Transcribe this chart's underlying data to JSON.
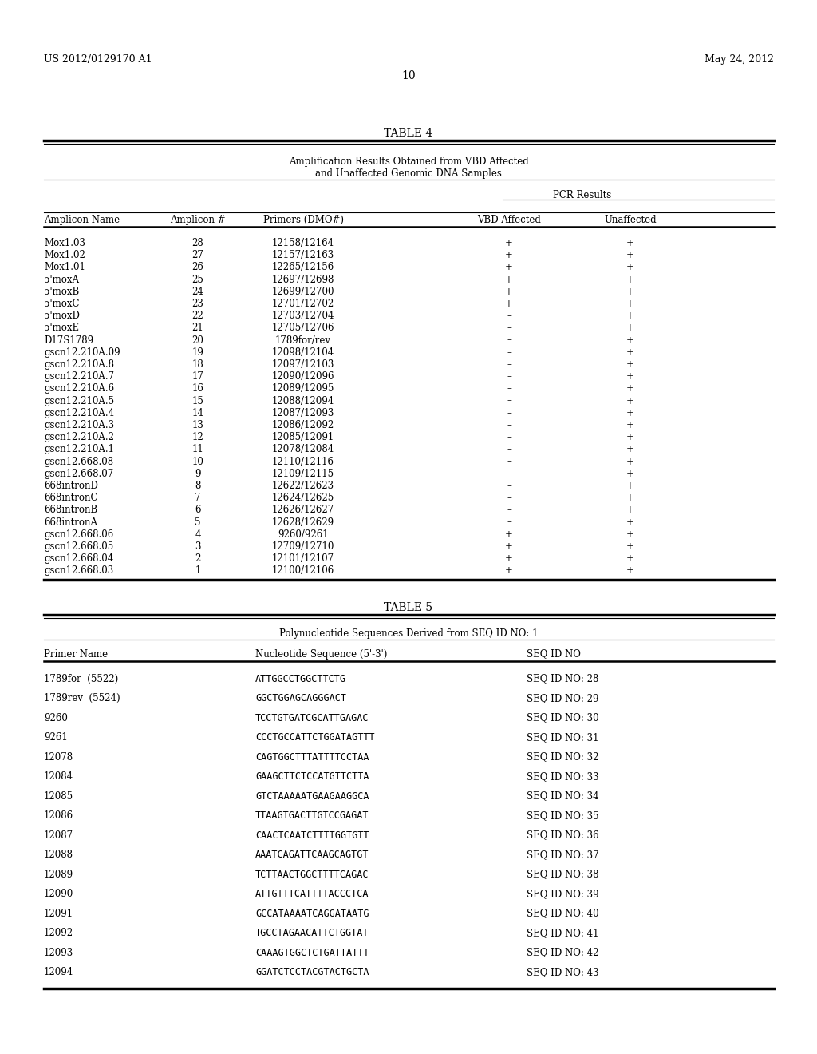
{
  "page_header_left": "US 2012/0129170 A1",
  "page_header_right": "May 24, 2012",
  "page_number": "10",
  "table4": {
    "title": "TABLE 4",
    "subtitle_line1": "Amplification Results Obtained from VBD Affected",
    "subtitle_line2": "and Unaffected Genomic DNA Samples",
    "pcr_label": "PCR Results",
    "col_headers": [
      "Amplicon Name",
      "Amplicon #",
      "Primers (DMO#)",
      "VBD Affected",
      "Unaffected"
    ],
    "rows": [
      [
        "Mox1.03",
        "28",
        "12158/12164",
        "+",
        "+"
      ],
      [
        "Mox1.02",
        "27",
        "12157/12163",
        "+",
        "+"
      ],
      [
        "Mox1.01",
        "26",
        "12265/12156",
        "+",
        "+"
      ],
      [
        "5'moxA",
        "25",
        "12697/12698",
        "+",
        "+"
      ],
      [
        "5'moxB",
        "24",
        "12699/12700",
        "+",
        "+"
      ],
      [
        "5'moxC",
        "23",
        "12701/12702",
        "+",
        "+"
      ],
      [
        "5'moxD",
        "22",
        "12703/12704",
        "–",
        "+"
      ],
      [
        "5'moxE",
        "21",
        "12705/12706",
        "–",
        "+"
      ],
      [
        "D17S1789",
        "20",
        "1789for/rev",
        "–",
        "+"
      ],
      [
        "gscn12.210A.09",
        "19",
        "12098/12104",
        "–",
        "+"
      ],
      [
        "gscn12.210A.8",
        "18",
        "12097/12103",
        "–",
        "+"
      ],
      [
        "gscn12.210A.7",
        "17",
        "12090/12096",
        "–",
        "+"
      ],
      [
        "gscn12.210A.6",
        "16",
        "12089/12095",
        "–",
        "+"
      ],
      [
        "gscn12.210A.5",
        "15",
        "12088/12094",
        "–",
        "+"
      ],
      [
        "gscn12.210A.4",
        "14",
        "12087/12093",
        "–",
        "+"
      ],
      [
        "gscn12.210A.3",
        "13",
        "12086/12092",
        "–",
        "+"
      ],
      [
        "gscn12.210A.2",
        "12",
        "12085/12091",
        "–",
        "+"
      ],
      [
        "gscn12.210A.1",
        "11",
        "12078/12084",
        "–",
        "+"
      ],
      [
        "gscn12.668.08",
        "10",
        "12110/12116",
        "–",
        "+"
      ],
      [
        "gscn12.668.07",
        "9",
        "12109/12115",
        "–",
        "+"
      ],
      [
        "668intronD",
        "8",
        "12622/12623",
        "–",
        "+"
      ],
      [
        "668intronC",
        "7",
        "12624/12625",
        "–",
        "+"
      ],
      [
        "668intronB",
        "6",
        "12626/12627",
        "–",
        "+"
      ],
      [
        "668intronA",
        "5",
        "12628/12629",
        "–",
        "+"
      ],
      [
        "gscn12.668.06",
        "4",
        "9260/9261",
        "+",
        "+"
      ],
      [
        "gscn12.668.05",
        "3",
        "12709/12710",
        "+",
        "+"
      ],
      [
        "gscn12.668.04",
        "2",
        "12101/12107",
        "+",
        "+"
      ],
      [
        "gscn12.668.03",
        "1",
        "12100/12106",
        "+",
        "+"
      ]
    ]
  },
  "table5": {
    "title": "TABLE 5",
    "subtitle": "Polynucleotide Sequences Derived from SEQ ID NO: 1",
    "col_headers": [
      "Primer Name",
      "Nucleotide Sequence (5'-3')",
      "SEQ ID NO"
    ],
    "rows": [
      [
        "1789for  (5522)",
        "ATTGGCCTGGCTTCTG",
        "SEQ ID NO: 28"
      ],
      [
        "1789rev  (5524)",
        "GGCTGGAGCAGGGACT",
        "SEQ ID NO: 29"
      ],
      [
        "9260",
        "TCCTGTGATCGCATTGAGAC",
        "SEQ ID NO: 30"
      ],
      [
        "9261",
        "CCCTGCCATTCTGGATAGTTT",
        "SEQ ID NO: 31"
      ],
      [
        "12078",
        "CAGTGGCTTTATTTTCCTAA",
        "SEQ ID NO: 32"
      ],
      [
        "12084",
        "GAAGCTTCTCCATGTTCTTA",
        "SEQ ID NO: 33"
      ],
      [
        "12085",
        "GTCTAAAAATGAAGAAGGCA",
        "SEQ ID NO: 34"
      ],
      [
        "12086",
        "TTAAGTGACTTGTCCGAGAT",
        "SEQ ID NO: 35"
      ],
      [
        "12087",
        "CAACTCAATCTTTTGGTGTT",
        "SEQ ID NO: 36"
      ],
      [
        "12088",
        "AAATCAGATTCAAGCAGTGT",
        "SEQ ID NO: 37"
      ],
      [
        "12089",
        "TCTTAACTGGCTTTTCAGAC",
        "SEQ ID NO: 38"
      ],
      [
        "12090",
        "ATTGTTTCATTTTACCCTCA",
        "SEQ ID NO: 39"
      ],
      [
        "12091",
        "GCCATAAAATCAGGATAATG",
        "SEQ ID NO: 40"
      ],
      [
        "12092",
        "TGCCTAGAACATTCTGGTAT",
        "SEQ ID NO: 41"
      ],
      [
        "12093",
        "CAAAGTGGCTCTGATTATTT",
        "SEQ ID NO: 42"
      ],
      [
        "12094",
        "GGATCTCCTACGTACTGCTA",
        "SEQ ID NO: 43"
      ]
    ]
  },
  "bg_color": "#ffffff",
  "text_color": "#000000"
}
